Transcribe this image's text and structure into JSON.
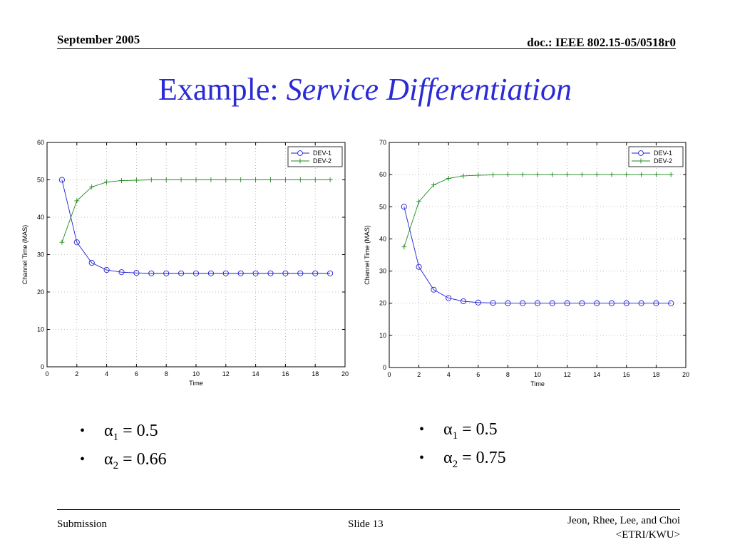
{
  "header": {
    "date": "September 2005",
    "doc": "doc.: IEEE 802.15-05/0518r0"
  },
  "title": {
    "prefix": "Example: ",
    "italic": "Service Differentiation"
  },
  "colors": {
    "title": "#2b2bd6",
    "dev1": "#1f1fd6",
    "dev2": "#1f8a1f"
  },
  "chart_data": [
    {
      "type": "line",
      "xlabel": "Time",
      "ylabel": "Channel Time (MAS)",
      "xlim": [
        0,
        20
      ],
      "ylim": [
        0,
        60
      ],
      "xticks": [
        0,
        2,
        4,
        6,
        8,
        10,
        12,
        14,
        16,
        18,
        20
      ],
      "yticks": [
        0,
        10,
        20,
        30,
        40,
        50,
        60
      ],
      "grid": true,
      "legend": "top-right",
      "x": [
        1,
        2,
        3,
        4,
        5,
        6,
        7,
        8,
        9,
        10,
        11,
        12,
        13,
        14,
        15,
        16,
        17,
        18,
        19
      ],
      "series": [
        {
          "name": "DEV-1",
          "marker": "circle",
          "values": [
            50,
            33.3,
            27.8,
            25.9,
            25.3,
            25.1,
            25.0,
            25.0,
            25.0,
            25.0,
            25.0,
            25.0,
            25.0,
            25.0,
            25.0,
            25.0,
            25.0,
            25.0,
            25.0
          ]
        },
        {
          "name": "DEV-2",
          "marker": "plus",
          "values": [
            33.3,
            44.4,
            48.1,
            49.4,
            49.8,
            49.9,
            50,
            50,
            50,
            50,
            50,
            50,
            50,
            50,
            50,
            50,
            50,
            50,
            50
          ]
        }
      ]
    },
    {
      "type": "line",
      "xlabel": "Time",
      "ylabel": "Channel Time (MAS)",
      "xlim": [
        0,
        20
      ],
      "ylim": [
        0,
        70
      ],
      "xticks": [
        0,
        2,
        4,
        6,
        8,
        10,
        12,
        14,
        16,
        18,
        20
      ],
      "yticks": [
        0,
        10,
        20,
        30,
        40,
        50,
        60,
        70
      ],
      "grid": true,
      "legend": "top-right",
      "x": [
        1,
        2,
        3,
        4,
        5,
        6,
        7,
        8,
        9,
        10,
        11,
        12,
        13,
        14,
        15,
        16,
        17,
        18,
        19
      ],
      "series": [
        {
          "name": "DEV-1",
          "marker": "circle",
          "values": [
            50,
            31.3,
            24.2,
            21.6,
            20.6,
            20.2,
            20.1,
            20,
            20,
            20,
            20,
            20,
            20,
            20,
            20,
            20,
            20,
            20,
            20
          ]
        },
        {
          "name": "DEV-2",
          "marker": "plus",
          "values": [
            37.5,
            51.6,
            56.8,
            58.8,
            59.6,
            59.8,
            59.9,
            60,
            60,
            60,
            60,
            60,
            60,
            60,
            60,
            60,
            60,
            60,
            60
          ]
        }
      ]
    }
  ],
  "params": [
    [
      {
        "sym": "α",
        "sub": "1",
        "rest": " = 0.5"
      },
      {
        "sym": "α",
        "sub": "2",
        "rest": " = 0.66"
      }
    ],
    [
      {
        "sym": "α",
        "sub": "1",
        "rest": " = 0.5"
      },
      {
        "sym": "α",
        "sub": "2",
        "rest": " = 0.75"
      }
    ]
  ],
  "bullet_char": "•",
  "footer": {
    "left": "Submission",
    "slide": "Slide 13",
    "authors": "Jeon, Rhee, Lee, and Choi",
    "org": "<ETRI/KWU>"
  }
}
